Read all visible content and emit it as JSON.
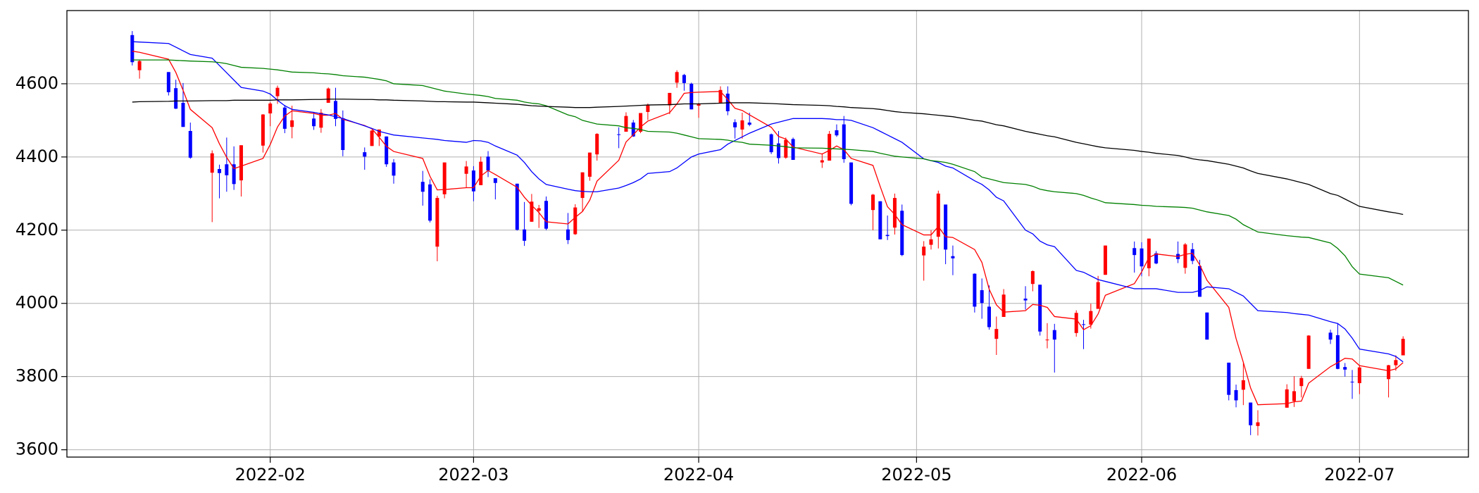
{
  "chart_data": {
    "type": "candlestick",
    "x": [
      13,
      14,
      18,
      19,
      20,
      21,
      24,
      25,
      26,
      27,
      28,
      31,
      32,
      33,
      34,
      35,
      38,
      39,
      40,
      41,
      42,
      45,
      46,
      47,
      48,
      49,
      53,
      54,
      55,
      56,
      59,
      60,
      61,
      62,
      63,
      66,
      67,
      68,
      69,
      70,
      73,
      74,
      75,
      76,
      77,
      80,
      81,
      82,
      83,
      84,
      87,
      88,
      89,
      90,
      91,
      94,
      95,
      96,
      97,
      98,
      101,
      102,
      103,
      104,
      108,
      109,
      110,
      111,
      112,
      115,
      116,
      117,
      118,
      119,
      122,
      123,
      124,
      125,
      126,
      129,
      130,
      131,
      132,
      133,
      136,
      137,
      138,
      139,
      140,
      143,
      144,
      145,
      146,
      147,
      151,
      152,
      153,
      154,
      157,
      158,
      159,
      160,
      161,
      164,
      165,
      166,
      167,
      168,
      172,
      173,
      174,
      175,
      178,
      179,
      180,
      181,
      182,
      186,
      187,
      188
    ],
    "open": [
      4733,
      4637,
      4632,
      4588,
      4548,
      4471,
      4357,
      4367,
      4380,
      4380,
      4336,
      4431,
      4519,
      4566,
      4535,
      4482,
      4505,
      4480,
      4548,
      4553,
      4506,
      4413,
      4430,
      4456,
      4456,
      4385,
      4332,
      4325,
      4155,
      4298,
      4354,
      4363,
      4323,
      4401,
      4342,
      4327,
      4202,
      4223,
      4253,
      4280,
      4202,
      4189,
      4288,
      4346,
      4407,
      4462,
      4469,
      4494,
      4469,
      4523,
      4541,
      4603,
      4624,
      4600,
      4540,
      4548,
      4573,
      4495,
      4475,
      4494,
      4462,
      4437,
      4398,
      4449,
      4385,
      4390,
      4473,
      4489,
      4385,
      4255,
      4279,
      4187,
      4207,
      4253,
      4131,
      4160,
      4182,
      4270,
      4129,
      4081,
      4036,
      3991,
      3903,
      3963,
      4013,
      4053,
      4051,
      3900,
      3927,
      3919,
      3943,
      3942,
      3985,
      4078,
      4151,
      4150,
      4096,
      4137,
      4135,
      4097,
      4148,
      4102,
      3975,
      3838,
      3763,
      3764,
      3729,
      3665,
      3715,
      3733,
      3774,
      3821,
      3920,
      3913,
      3826,
      3786,
      3782,
      3793,
      3831,
      3858
    ],
    "high": [
      4744,
      4666,
      4632,
      4611,
      4602,
      4494,
      4418,
      4379,
      4453,
      4429,
      4432,
      4517,
      4550,
      4595,
      4542,
      4540,
      4522,
      4531,
      4590,
      4589,
      4527,
      4426,
      4474,
      4475,
      4456,
      4394,
      4362,
      4339,
      4294,
      4385,
      4389,
      4375,
      4401,
      4416,
      4342,
      4327,
      4277,
      4299,
      4269,
      4292,
      4247,
      4271,
      4358,
      4412,
      4465,
      4481,
      4522,
      4501,
      4520,
      4546,
      4575,
      4637,
      4627,
      4603,
      4548,
      4593,
      4593,
      4503,
      4521,
      4521,
      4464,
      4471,
      4453,
      4453,
      4410,
      4471,
      4489,
      4512,
      4385,
      4299,
      4279,
      4240,
      4300,
      4270,
      4170,
      4200,
      4308,
      4270,
      4158,
      4082,
      4068,
      4049,
      3964,
      4039,
      4047,
      4090,
      4051,
      3946,
      3944,
      3981,
      3955,
      3999,
      4075,
      4158,
      4169,
      4167,
      4177,
      4143,
      4169,
      4165,
      4165,
      4119,
      3975,
      3838,
      3778,
      3837,
      3729,
      3708,
      3779,
      3801,
      3802,
      3913,
      3928,
      3946,
      3837,
      3818,
      3829,
      3832,
      3858,
      3910
    ],
    "low": [
      4650,
      4614,
      4568,
      4531,
      4483,
      4395,
      4222,
      4287,
      4305,
      4310,
      4292,
      4412,
      4484,
      4545,
      4465,
      4451,
      4474,
      4466,
      4548,
      4484,
      4402,
      4365,
      4430,
      4430,
      4373,
      4327,
      4267,
      4221,
      4115,
      4287,
      4315,
      4279,
      4323,
      4345,
      4284,
      4199,
      4157,
      4223,
      4206,
      4200,
      4162,
      4187,
      4251,
      4335,
      4390,
      4424,
      4469,
      4455,
      4465,
      4501,
      4517,
      4589,
      4581,
      4530,
      4507,
      4548,
      4514,
      4450,
      4450,
      4484,
      4408,
      4382,
      4395,
      4392,
      4370,
      4390,
      4455,
      4384,
      4268,
      4200,
      4175,
      4173,
      4188,
      4129,
      4062,
      4147,
      4150,
      4107,
      4077,
      3975,
      3958,
      3928,
      3859,
      3963,
      3983,
      4033,
      3912,
      3877,
      3811,
      3909,
      3875,
      3931,
      3985,
      4078,
      4084,
      4074,
      4074,
      4107,
      4110,
      4081,
      4107,
      4018,
      3901,
      3735,
      3716,
      3722,
      3640,
      3639,
      3715,
      3717,
      3743,
      3821,
      3889,
      3820,
      3800,
      3739,
      3752,
      3743,
      3816,
      3858
    ],
    "close": [
      4659,
      4662,
      4577,
      4532,
      4482,
      4398,
      4410,
      4356,
      4350,
      4326,
      4432,
      4516,
      4546,
      4589,
      4477,
      4500,
      4484,
      4521,
      4587,
      4504,
      4419,
      4401,
      4472,
      4475,
      4380,
      4349,
      4305,
      4226,
      4288,
      4385,
      4374,
      4306,
      4387,
      4363,
      4329,
      4201,
      4171,
      4278,
      4260,
      4204,
      4173,
      4262,
      4358,
      4412,
      4463,
      4461,
      4512,
      4456,
      4520,
      4543,
      4575,
      4632,
      4602,
      4530,
      4546,
      4583,
      4525,
      4481,
      4500,
      4488,
      4413,
      4397,
      4447,
      4392,
      4391,
      4463,
      4459,
      4394,
      4272,
      4297,
      4175,
      4184,
      4288,
      4132,
      4155,
      4175,
      4300,
      4147,
      4123,
      3991,
      4001,
      3935,
      3930,
      4024,
      4008,
      4088,
      3923,
      3901,
      3901,
      3974,
      3941,
      3979,
      4058,
      4158,
      4132,
      4101,
      4177,
      4109,
      4121,
      4161,
      4116,
      4018,
      3901,
      3750,
      3735,
      3790,
      3667,
      3675,
      3765,
      3760,
      3796,
      3912,
      3901,
      3821,
      3819,
      3785,
      3825,
      3831,
      3845,
      3903
    ],
    "up_color": "#ff0000",
    "down_color": "#0000ff",
    "series": [
      {
        "color": "#ff0000",
        "values": [
          4689,
          4686,
          4667,
          4631,
          4582,
          4530,
          4480,
          4436,
          4399,
          4368,
          4375,
          4396,
          4434,
          4482,
          4512,
          4526,
          4519,
          4514,
          4514,
          4519,
          4503,
          4486,
          4477,
          4454,
          4429,
          4415,
          4396,
          4347,
          4310,
          4311,
          4316,
          4316,
          4348,
          4363,
          4352,
          4317,
          4290,
          4268,
          4248,
          4223,
          4217,
          4235,
          4251,
          4282,
          4334,
          4391,
          4441,
          4461,
          4482,
          4498,
          4521,
          4545,
          4574,
          4576,
          4577,
          4579,
          4557,
          4533,
          4527,
          4515,
          4481,
          4456,
          4449,
          4427,
          4408,
          4418,
          4430,
          4420,
          4396,
          4377,
          4319,
          4264,
          4243,
          4215,
          4187,
          4187,
          4210,
          4182,
          4180,
          4147,
          4112,
          4039,
          3996,
          3976,
          3980,
          3997,
          3995,
          3989,
          3964,
          3957,
          3928,
          3939,
          3971,
          4022,
          4054,
          4086,
          4125,
          4135,
          4128,
          4134,
          4137,
          4105,
          4063,
          3989,
          3904,
          3839,
          3769,
          3723,
          3726,
          3731,
          3733,
          3782,
          3827,
          3838,
          3850,
          3848,
          3830,
          3816,
          3821,
          3838
        ]
      },
      {
        "color": "#0000ff",
        "values": [
          4715,
          4714,
          4710,
          4700,
          4690,
          4680,
          4670,
          4650,
          4630,
          4610,
          4590,
          4580,
          4572,
          4555,
          4540,
          4530,
          4522,
          4518,
          4515,
          4510,
          4505,
          4485,
          4478,
          4470,
          4465,
          4460,
          4452,
          4450,
          4448,
          4445,
          4440,
          4445,
          4444,
          4440,
          4430,
          4405,
          4385,
          4360,
          4340,
          4325,
          4312,
          4308,
          4306,
          4305,
          4305,
          4315,
          4322,
          4330,
          4340,
          4355,
          4360,
          4370,
          4385,
          4400,
          4408,
          4420,
          4435,
          4445,
          4455,
          4465,
          4490,
          4495,
          4500,
          4505,
          4505,
          4504,
          4502,
          4502,
          4500,
          4480,
          4470,
          4460,
          4450,
          4440,
          4395,
          4390,
          4385,
          4375,
          4370,
          4335,
          4325,
          4310,
          4290,
          4280,
          4200,
          4190,
          4170,
          4160,
          4155,
          4090,
          4085,
          4075,
          4065,
          4060,
          4040,
          4040,
          4040,
          4040,
          4030,
          4030,
          4030,
          4035,
          4045,
          4040,
          4030,
          4020,
          4000,
          3980,
          3975,
          3972,
          3970,
          3968,
          3950,
          3945,
          3930,
          3905,
          3875,
          3862,
          3855,
          3840
        ]
      },
      {
        "color": "#008000",
        "values": [
          4665,
          4665,
          4665,
          4664,
          4663,
          4662,
          4660,
          4658,
          4655,
          4650,
          4645,
          4642,
          4640,
          4638,
          4635,
          4632,
          4630,
          4628,
          4627,
          4625,
          4622,
          4618,
          4615,
          4612,
          4608,
          4600,
          4595,
          4590,
          4585,
          4580,
          4572,
          4570,
          4568,
          4565,
          4560,
          4555,
          4550,
          4547,
          4545,
          4540,
          4515,
          4510,
          4500,
          4495,
          4490,
          4485,
          4480,
          4478,
          4475,
          4470,
          4468,
          4465,
          4460,
          4455,
          4450,
          4448,
          4446,
          4442,
          4440,
          4435,
          4432,
          4430,
          4428,
          4425,
          4424,
          4423,
          4422,
          4421,
          4420,
          4415,
          4410,
          4406,
          4402,
          4400,
          4395,
          4390,
          4388,
          4385,
          4380,
          4360,
          4345,
          4340,
          4335,
          4330,
          4325,
          4320,
          4312,
          4308,
          4305,
          4300,
          4295,
          4288,
          4282,
          4275,
          4270,
          4268,
          4267,
          4265,
          4263,
          4262,
          4260,
          4255,
          4250,
          4240,
          4230,
          4215,
          4205,
          4195,
          4185,
          4183,
          4181,
          4180,
          4165,
          4150,
          4130,
          4100,
          4080,
          4070,
          4060,
          4050
        ]
      },
      {
        "color": "#000000",
        "values": [
          4550,
          4551,
          4552,
          4553,
          4553,
          4553,
          4554,
          4554,
          4554,
          4555,
          4555,
          4555,
          4555,
          4556,
          4556,
          4556,
          4557,
          4557,
          4558,
          4558,
          4558,
          4557,
          4557,
          4556,
          4556,
          4555,
          4553,
          4552,
          4551,
          4551,
          4550,
          4550,
          4549,
          4548,
          4547,
          4544,
          4542,
          4540,
          4539,
          4538,
          4536,
          4535,
          4535,
          4535,
          4536,
          4538,
          4539,
          4540,
          4541,
          4542,
          4543,
          4544,
          4545,
          4545,
          4545,
          4547,
          4548,
          4548,
          4548,
          4548,
          4546,
          4545,
          4544,
          4543,
          4541,
          4540,
          4538,
          4537,
          4535,
          4532,
          4530,
          4527,
          4524,
          4522,
          4518,
          4516,
          4514,
          4512,
          4510,
          4500,
          4498,
          4493,
          4488,
          4485,
          4470,
          4466,
          4462,
          4458,
          4455,
          4440,
          4436,
          4432,
          4428,
          4425,
          4418,
          4415,
          4413,
          4410,
          4404,
          4400,
          4395,
          4392,
          4390,
          4380,
          4375,
          4370,
          4362,
          4355,
          4340,
          4335,
          4330,
          4325,
          4300,
          4295,
          4285,
          4275,
          4265,
          4250,
          4247,
          4243
        ]
      }
    ],
    "xlim": [
      4,
      197
    ],
    "ylim": [
      3580,
      4800
    ],
    "xticks": [
      {
        "value": 32,
        "label": "2022-02"
      },
      {
        "value": 60,
        "label": "2022-03"
      },
      {
        "value": 91,
        "label": "2022-04"
      },
      {
        "value": 121,
        "label": "2022-05"
      },
      {
        "value": 152,
        "label": "2022-06"
      },
      {
        "value": 182,
        "label": "2022-07"
      }
    ],
    "yticks": [
      3600,
      3800,
      4000,
      4200,
      4400,
      4600
    ],
    "grid": true
  }
}
